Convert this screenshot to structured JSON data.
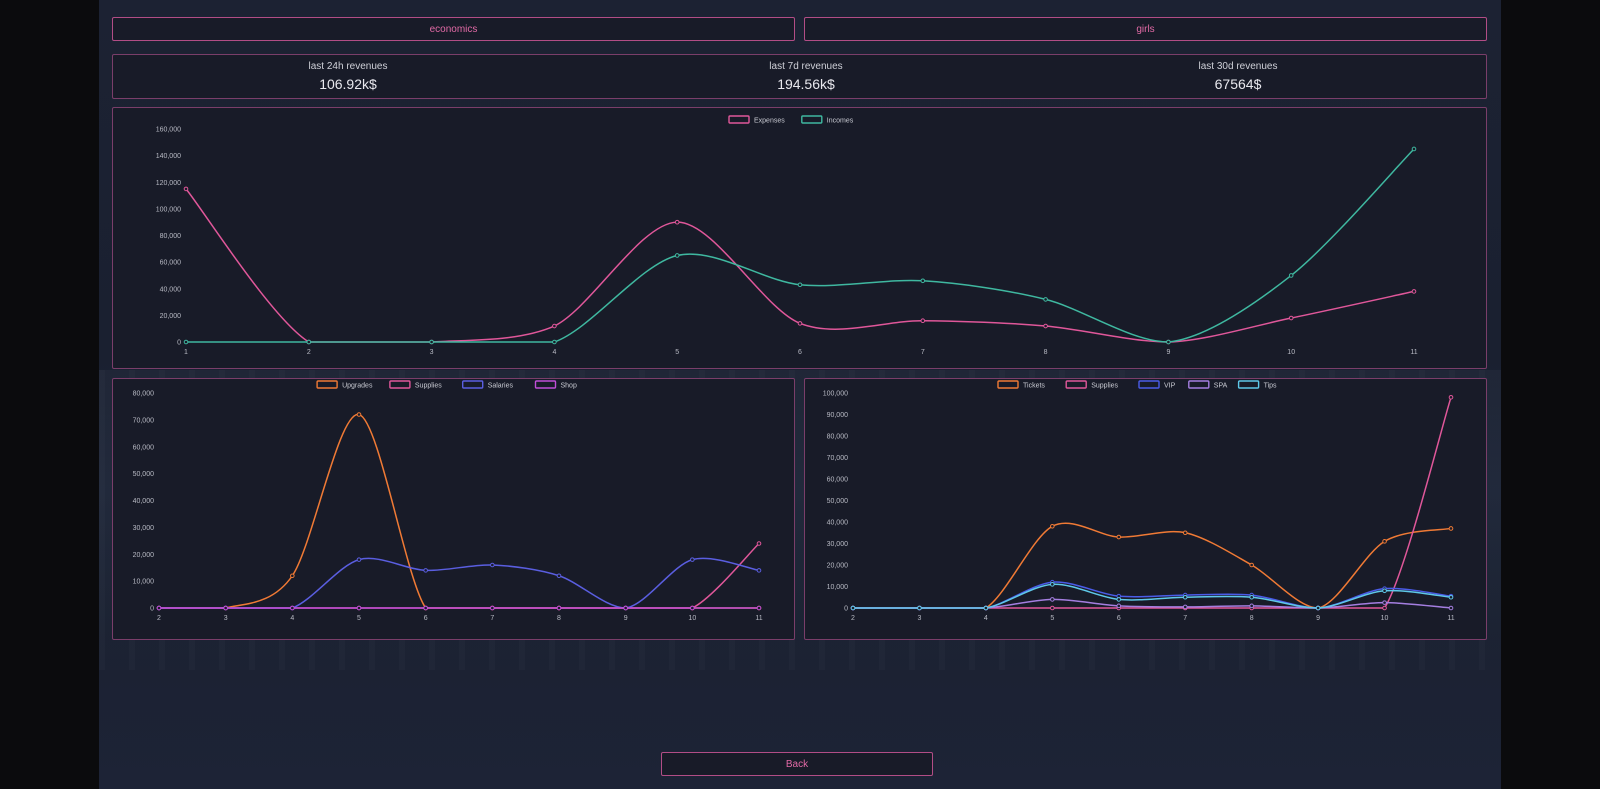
{
  "tabs": {
    "economics": "economics",
    "girls": "girls"
  },
  "stats": {
    "day_label": "last 24h revenues",
    "day_value": "106.92k$",
    "week_label": "last 7d revenues",
    "week_value": "194.56k$",
    "month_label": "last 30d revenues",
    "month_value": "67564$"
  },
  "back_label": "Back",
  "chart_data": [
    {
      "type": "line",
      "categories": [
        "1",
        "2",
        "3",
        "4",
        "5",
        "6",
        "7",
        "8",
        "9",
        "10",
        "11"
      ],
      "ylim": [
        0,
        160000
      ],
      "yticks": [
        "0",
        "20,000",
        "40,000",
        "60,000",
        "80,000",
        "100,000",
        "120,000",
        "140,000",
        "160,000"
      ],
      "series": [
        {
          "name": "Expenses",
          "color": "#e0579a",
          "values": [
            115000,
            0,
            0,
            12000,
            90000,
            14000,
            16000,
            12000,
            0,
            18000,
            38000
          ]
        },
        {
          "name": "Incomes",
          "color": "#3fb8a0",
          "values": [
            0,
            0,
            0,
            0,
            65000,
            43000,
            46000,
            32000,
            0,
            50000,
            145000
          ]
        }
      ]
    },
    {
      "type": "line",
      "categories": [
        "2",
        "3",
        "4",
        "5",
        "6",
        "7",
        "8",
        "9",
        "10",
        "11"
      ],
      "ylim": [
        0,
        80000
      ],
      "yticks": [
        "0",
        "10,000",
        "20,000",
        "30,000",
        "40,000",
        "50,000",
        "60,000",
        "70,000",
        "80,000"
      ],
      "series": [
        {
          "name": "Upgrades",
          "color": "#f07a35",
          "values": [
            0,
            0,
            12000,
            72000,
            0,
            0,
            0,
            0,
            0,
            0
          ]
        },
        {
          "name": "Supplies",
          "color": "#e0579a",
          "values": [
            0,
            0,
            0,
            0,
            0,
            0,
            0,
            0,
            0,
            24000
          ]
        },
        {
          "name": "Salaries",
          "color": "#5a5ee0",
          "values": [
            0,
            0,
            0,
            18000,
            14000,
            16000,
            12000,
            0,
            18000,
            14000
          ]
        },
        {
          "name": "Shop",
          "color": "#c04ed8",
          "values": [
            0,
            0,
            0,
            0,
            0,
            0,
            0,
            0,
            0,
            0
          ]
        }
      ]
    },
    {
      "type": "line",
      "categories": [
        "2",
        "3",
        "4",
        "5",
        "6",
        "7",
        "8",
        "9",
        "10",
        "11"
      ],
      "ylim": [
        0,
        100000
      ],
      "yticks": [
        "0",
        "10,000",
        "20,000",
        "30,000",
        "40,000",
        "50,000",
        "60,000",
        "70,000",
        "80,000",
        "90,000",
        "100,000"
      ],
      "series": [
        {
          "name": "Tickets",
          "color": "#f07a35",
          "values": [
            0,
            0,
            0,
            38000,
            33000,
            35000,
            20000,
            0,
            31000,
            37000
          ]
        },
        {
          "name": "Supplies",
          "color": "#e0579a",
          "values": [
            0,
            0,
            0,
            0,
            0,
            0,
            0,
            0,
            0,
            98000
          ]
        },
        {
          "name": "VIP",
          "color": "#4a5ce8",
          "values": [
            0,
            0,
            0,
            12000,
            5500,
            6000,
            6000,
            0,
            9000,
            5500
          ]
        },
        {
          "name": "SPA",
          "color": "#a47ee0",
          "values": [
            0,
            0,
            0,
            4000,
            1000,
            500,
            1000,
            0,
            2500,
            0
          ]
        },
        {
          "name": "Tips",
          "color": "#5ec8e8",
          "values": [
            0,
            0,
            0,
            11000,
            4000,
            5000,
            5000,
            0,
            8000,
            5000
          ]
        }
      ]
    }
  ]
}
